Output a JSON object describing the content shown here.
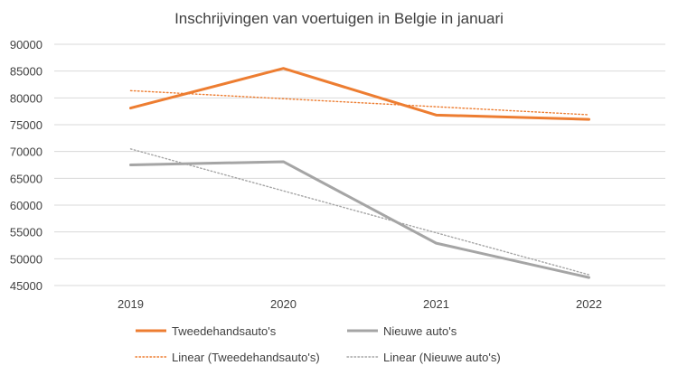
{
  "chart_data": {
    "type": "line",
    "title": "Inschrijvingen van voertuigen in Belgie in januari",
    "categories": [
      "2019",
      "2020",
      "2021",
      "2022"
    ],
    "ylim": [
      45000,
      90000
    ],
    "yticks": [
      "90000",
      "85000",
      "80000",
      "75000",
      "70000",
      "65000",
      "60000",
      "55000",
      "50000",
      "45000"
    ],
    "grid": true,
    "legend_position": "bottom",
    "series": [
      {
        "name": "Tweedehandsauto's",
        "values": [
          78100,
          85500,
          76800,
          76000
        ],
        "color": "#ED7D31",
        "style": "solid"
      },
      {
        "name": "Nieuwe auto's",
        "values": [
          67500,
          68100,
          52900,
          46500
        ],
        "color": "#A5A5A5",
        "style": "solid"
      }
    ],
    "trendlines": [
      {
        "name": "Linear (Tweedehandsauto's)",
        "series": 0,
        "color": "#ED7D31",
        "style": "dotted"
      },
      {
        "name": "Linear (Nieuwe auto's)",
        "series": 1,
        "color": "#A5A5A5",
        "style": "dotted"
      }
    ]
  }
}
